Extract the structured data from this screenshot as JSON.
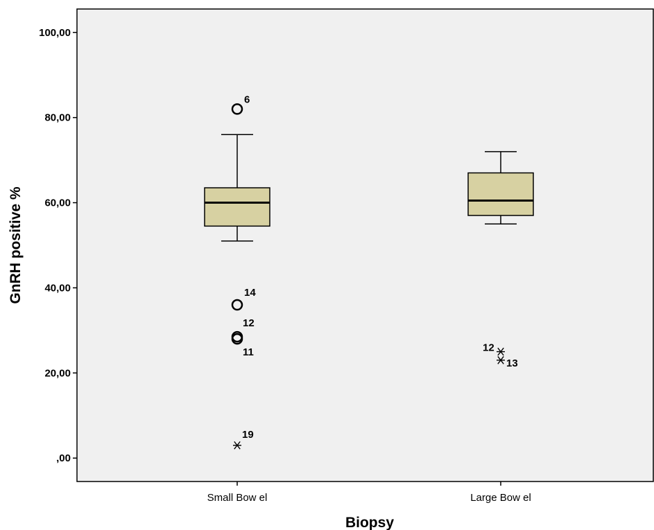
{
  "chart_data": {
    "type": "boxplot",
    "title": "",
    "xlabel": "Biopsy",
    "ylabel": "GnRH positive %",
    "ylim": [
      -5.5,
      105.5
    ],
    "yticks": [
      0,
      20,
      40,
      60,
      80,
      100
    ],
    "ytick_labels": [
      ",00",
      "20,00",
      "40,00",
      "60,00",
      "80,00",
      "100,00"
    ],
    "grid": false,
    "colors": {
      "box_fill": "#d7d1a2",
      "plot_bg": "#f0f0f0",
      "line": "#000000"
    },
    "categories": [
      "Small Bow el",
      "Large Bow el"
    ],
    "boxes": [
      {
        "category": "Small Bow el",
        "whisker_low": 51,
        "q1": 54.5,
        "median": 60,
        "q3": 63.5,
        "whisker_high": 76,
        "outliers": [
          {
            "value": 82,
            "marker": "circle",
            "label": "6"
          },
          {
            "value": 36,
            "marker": "circle",
            "label": "14"
          },
          {
            "value": 28.5,
            "marker": "circle",
            "label": "12"
          },
          {
            "value": 28,
            "marker": "circle",
            "label": "11"
          },
          {
            "value": 3,
            "marker": "star",
            "label": "19"
          }
        ]
      },
      {
        "category": "Large Bow el",
        "whisker_low": 55,
        "q1": 57,
        "median": 60.5,
        "q3": 67,
        "whisker_high": 72,
        "outliers": [
          {
            "value": 25,
            "marker": "star",
            "label": "12"
          },
          {
            "value": 23,
            "marker": "star",
            "label": "13"
          }
        ]
      }
    ]
  }
}
